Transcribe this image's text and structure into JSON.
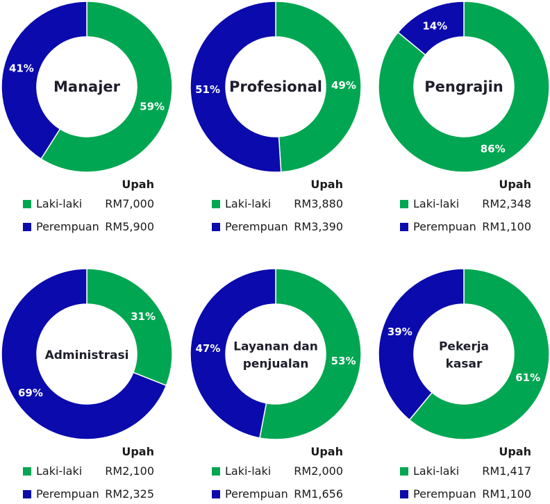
{
  "colors": {
    "male": "#00a651",
    "female": "#0a0aad",
    "center_text": "#1e1e2c"
  },
  "legend": {
    "wage_header": "Upah",
    "male_label": "Laki-laki",
    "female_label": "Perempuan"
  },
  "chart_data": [
    {
      "type": "pie",
      "title_lines": [
        "Manajer"
      ],
      "series": [
        {
          "name": "Laki-laki",
          "value": 59,
          "label": "59%",
          "wage": "RM7,000"
        },
        {
          "name": "Perempuan",
          "value": 41,
          "label": "41%",
          "wage": "RM5,900"
        }
      ]
    },
    {
      "type": "pie",
      "title_lines": [
        "Profesional"
      ],
      "series": [
        {
          "name": "Laki-laki",
          "value": 49,
          "label": "49%",
          "wage": "RM3,880"
        },
        {
          "name": "Perempuan",
          "value": 51,
          "label": "51%",
          "wage": "RM3,390"
        }
      ]
    },
    {
      "type": "pie",
      "title_lines": [
        "Pengrajin"
      ],
      "series": [
        {
          "name": "Laki-laki",
          "value": 86,
          "label": "86%",
          "wage": "RM2,348"
        },
        {
          "name": "Perempuan",
          "value": 14,
          "label": "14%",
          "wage": "RM1,100"
        }
      ]
    },
    {
      "type": "pie",
      "title_lines": [
        "Administrasi"
      ],
      "series": [
        {
          "name": "Laki-laki",
          "value": 31,
          "label": "31%",
          "wage": "RM2,100"
        },
        {
          "name": "Perempuan",
          "value": 69,
          "label": "69%",
          "wage": "RM2,325"
        }
      ]
    },
    {
      "type": "pie",
      "title_lines": [
        "Layanan dan",
        "penjualan"
      ],
      "series": [
        {
          "name": "Laki-laki",
          "value": 53,
          "label": "53%",
          "wage": "RM2,000"
        },
        {
          "name": "Perempuan",
          "value": 47,
          "label": "47%",
          "wage": "RM1,656"
        }
      ]
    },
    {
      "type": "pie",
      "title_lines": [
        "Pekerja",
        "kasar"
      ],
      "series": [
        {
          "name": "Laki-laki",
          "value": 61,
          "label": "61%",
          "wage": "RM1,417"
        },
        {
          "name": "Perempuan",
          "value": 39,
          "label": "39%",
          "wage": "RM1,100"
        }
      ]
    }
  ]
}
